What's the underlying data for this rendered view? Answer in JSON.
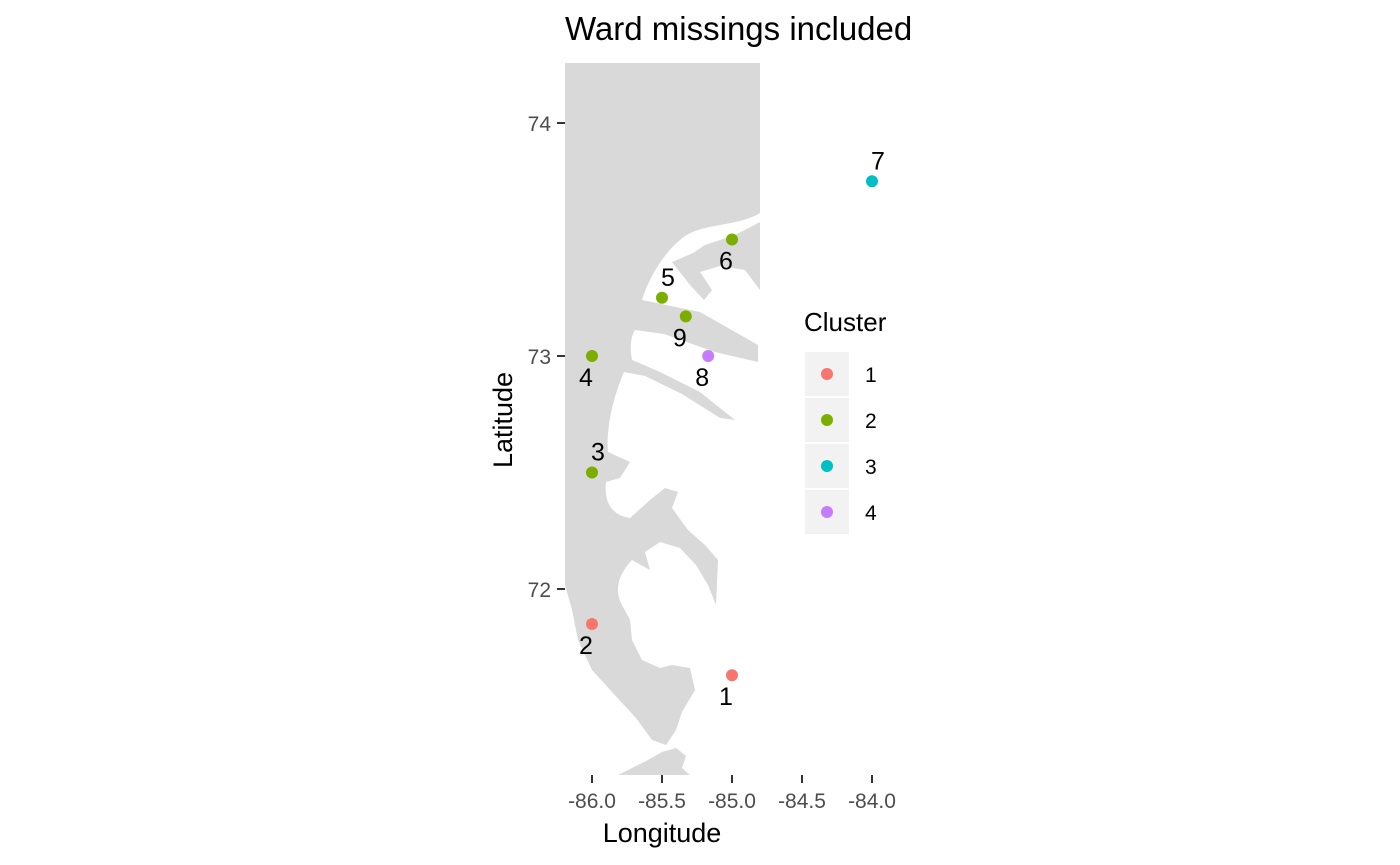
{
  "chart_data": {
    "type": "scatter",
    "title": "Ward missings included",
    "xlabel": "Longitude",
    "ylabel": "Latitude",
    "xlim": [
      -86.4,
      -83.6
    ],
    "ylim": [
      71.25,
      74.2
    ],
    "x_ticks": [
      -86.0,
      -85.5,
      -85.0,
      -84.5,
      -84.0
    ],
    "x_tick_labels": [
      "-86.0",
      "-85.5",
      "-85.0",
      "-84.5",
      "-84.0"
    ],
    "y_ticks": [
      72,
      73,
      74
    ],
    "y_tick_labels": [
      "72",
      "73",
      "74"
    ],
    "grid": false,
    "background": "map",
    "map_fill": "#d9d9d9",
    "legend": {
      "title": "Cluster",
      "position": "right",
      "entries": [
        {
          "label": "1",
          "color": "#F8766D"
        },
        {
          "label": "2",
          "color": "#7CAE00"
        },
        {
          "label": "3",
          "color": "#00BFC4"
        },
        {
          "label": "4",
          "color": "#C77CFF"
        }
      ]
    },
    "points": [
      {
        "label": "1",
        "x": -85.0,
        "y": 71.63,
        "cluster": "1",
        "label_side": "below"
      },
      {
        "label": "2",
        "x": -86.0,
        "y": 71.85,
        "cluster": "1",
        "label_side": "below"
      },
      {
        "label": "3",
        "x": -86.0,
        "y": 72.5,
        "cluster": "2",
        "label_side": "above"
      },
      {
        "label": "4",
        "x": -86.0,
        "y": 73.0,
        "cluster": "2",
        "label_side": "below"
      },
      {
        "label": "5",
        "x": -85.5,
        "y": 73.25,
        "cluster": "2",
        "label_side": "above"
      },
      {
        "label": "6",
        "x": -85.0,
        "y": 73.5,
        "cluster": "2",
        "label_side": "below"
      },
      {
        "label": "7",
        "x": -84.0,
        "y": 73.75,
        "cluster": "3",
        "label_side": "above"
      },
      {
        "label": "8",
        "x": -85.17,
        "y": 73.0,
        "cluster": "4",
        "label_side": "below"
      },
      {
        "label": "9",
        "x": -85.33,
        "y": 73.17,
        "cluster": "2",
        "label_side": "below"
      }
    ]
  }
}
